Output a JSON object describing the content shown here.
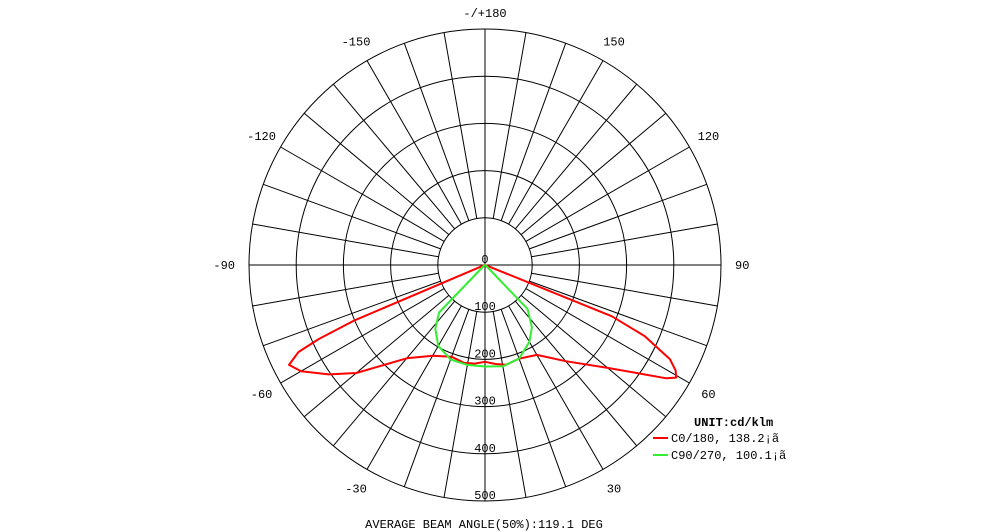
{
  "chart_data": {
    "type": "polar",
    "angle_labels": [
      {
        "angle": 180,
        "text": "-/+180"
      },
      {
        "angle": 150,
        "text": "150"
      },
      {
        "angle": -150,
        "text": "-150"
      },
      {
        "angle": 120,
        "text": "120"
      },
      {
        "angle": -120,
        "text": "-120"
      },
      {
        "angle": 90,
        "text": "90"
      },
      {
        "angle": -90,
        "text": "-90"
      },
      {
        "angle": 60,
        "text": "60"
      },
      {
        "angle": -60,
        "text": "-60"
      },
      {
        "angle": 30,
        "text": "30"
      },
      {
        "angle": -30,
        "text": "-30"
      },
      {
        "angle": 0,
        "text": "0"
      }
    ],
    "radial_labels": [
      "0",
      "100",
      "200",
      "300",
      "400",
      "500"
    ],
    "radial_max": 500,
    "grid": true,
    "legend_title": "UNIT:cd/klm",
    "legend_position": "bottom-right",
    "series": [
      {
        "name": "C0/180, 138.2¡ã",
        "color": "#ff0000",
        "points": [
          [
            -70,
            5
          ],
          [
            -67,
            300
          ],
          [
            -66,
            386
          ],
          [
            -65,
            436
          ],
          [
            -63,
            466
          ],
          [
            -60,
            450
          ],
          [
            -55,
            404
          ],
          [
            -50,
            356
          ],
          [
            -40,
            258
          ],
          [
            -30,
            222
          ],
          [
            -20,
            207
          ],
          [
            -12,
            212
          ],
          [
            -6,
            210
          ],
          [
            0,
            205
          ],
          [
            6,
            211
          ],
          [
            12,
            216
          ],
          [
            20,
            211
          ],
          [
            30,
            220
          ],
          [
            40,
            266
          ],
          [
            50,
            339
          ],
          [
            55,
            401
          ],
          [
            58,
            453
          ],
          [
            59.5,
            470
          ],
          [
            61,
            462
          ],
          [
            63,
            440
          ],
          [
            66,
            370
          ],
          [
            68,
            290
          ],
          [
            70,
            5
          ]
        ]
      },
      {
        "name": "C90/270, 100.1¡ã",
        "color": "#33ee33",
        "points": [
          [
            -50,
            5
          ],
          [
            -44,
            140
          ],
          [
            -38,
            171
          ],
          [
            -30,
            198
          ],
          [
            -20,
            213
          ],
          [
            -10,
            215
          ],
          [
            0,
            215
          ],
          [
            10,
            218
          ],
          [
            20,
            211
          ],
          [
            30,
            188
          ],
          [
            37,
            165
          ],
          [
            44,
            130
          ],
          [
            50,
            5
          ]
        ]
      }
    ],
    "footer": "AVERAGE BEAM ANGLE(50%):119.1 DEG"
  }
}
